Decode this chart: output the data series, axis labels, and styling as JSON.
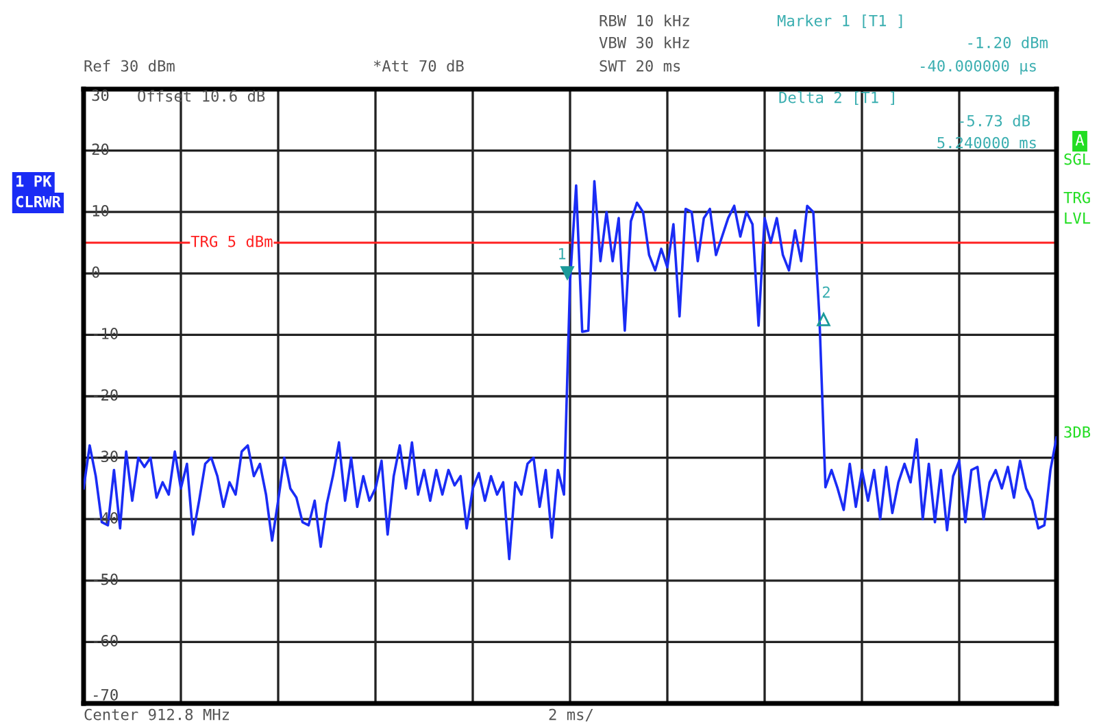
{
  "chart_data": {
    "type": "line",
    "ylim": [
      -70,
      30
    ],
    "yticks": [
      30,
      20,
      10,
      0,
      -10,
      -20,
      -30,
      -40,
      -50,
      -60,
      -70
    ],
    "categories": [
      null,
      null,
      null,
      null,
      null,
      null,
      null,
      null,
      null,
      null,
      null,
      null,
      null,
      null,
      null,
      null,
      null,
      null,
      null,
      null,
      null,
      null,
      null,
      null,
      null,
      null,
      null,
      null,
      null,
      null,
      null,
      null,
      null,
      null,
      null,
      null,
      null,
      null,
      null,
      null,
      null,
      null,
      null,
      null,
      null,
      null,
      null,
      null,
      null,
      null,
      null,
      null,
      null,
      null,
      null,
      null,
      null,
      null,
      null,
      null,
      null,
      null,
      null,
      null,
      null,
      null,
      null,
      null,
      null,
      null,
      null,
      null,
      null,
      null,
      null,
      null,
      null,
      null,
      null,
      null,
      null,
      null,
      null,
      null,
      null,
      null,
      null,
      null,
      null,
      null,
      null,
      null,
      null,
      null,
      null,
      null,
      null,
      null,
      null,
      null,
      null,
      null,
      null,
      null,
      null,
      null,
      null,
      null,
      null,
      null,
      null,
      null,
      null,
      null,
      null,
      null,
      null,
      null,
      null,
      null,
      null,
      null,
      null,
      null,
      null,
      null,
      null,
      null,
      null,
      null,
      null,
      null,
      null,
      null,
      null,
      null,
      null,
      null,
      null,
      null,
      null,
      null,
      null,
      null,
      null,
      null,
      null,
      null,
      null,
      null,
      null,
      null,
      null,
      null,
      null,
      null,
      null,
      null,
      null,
      null,
      null
    ],
    "tick_labels": "y",
    "grid": true,
    "legend": false,
    "marker": "none",
    "line_style": "solid",
    "ref_lines": [
      {
        "axis": "y",
        "value": 5,
        "label": "TRG 5 dBm",
        "color": "#ff2020"
      }
    ],
    "series": [
      {
        "color": "#1a2cf5",
        "values": [
          -35,
          -28,
          -33,
          -40.5,
          -41,
          -32,
          -41.5,
          -29,
          -37,
          -30,
          -31.5,
          -30,
          -36.5,
          -34,
          -36,
          -29,
          -35,
          -31,
          -42.5,
          -37,
          -31,
          -30,
          -33,
          -38,
          -34,
          -36,
          -29,
          -28,
          -33,
          -31,
          -36,
          -43.5,
          -37,
          -30,
          -35,
          -36.5,
          -40.5,
          -41,
          -37,
          -44.5,
          -37.5,
          -33,
          -27.5,
          -37,
          -30,
          -38,
          -33,
          -37,
          -35,
          -30.5,
          -42.5,
          -33,
          -28,
          -35,
          -27.5,
          -36,
          -32,
          -37,
          -32,
          -36,
          -32,
          -34.5,
          -33,
          -41.5,
          -35,
          -32.5,
          -37,
          -33,
          -36,
          -34,
          -46.5,
          -34,
          -36,
          -31,
          -30,
          -38,
          -32,
          -43,
          -32,
          -36,
          -1.2,
          14.3,
          -9.5,
          -9.3,
          15,
          2,
          10,
          2,
          9,
          -9.3,
          8.5,
          11.5,
          10,
          3,
          0.5,
          4,
          1,
          8,
          -7,
          10.5,
          10,
          2,
          9,
          10.5,
          3,
          6,
          9,
          11,
          6,
          10,
          8,
          -8.5,
          9,
          5,
          9,
          3,
          0.5,
          7,
          2,
          11,
          10,
          -6.9,
          -34.8,
          -32,
          -35,
          -38.5,
          -31,
          -38,
          -32,
          -37,
          -32,
          -40,
          -31.5,
          -39,
          -34,
          -31,
          -34,
          -27,
          -40,
          -31,
          -40.5,
          -32,
          -41.8,
          -33,
          -30.5,
          -40.5,
          -32,
          -31.5,
          -40,
          -34,
          -32,
          -35,
          -31.5,
          -36.5,
          -30.5,
          -35,
          -37,
          -41.5,
          -41,
          -32,
          -26.7
        ]
      }
    ],
    "annotations": [
      "Ref 30 dBm",
      "*Att 70 dB",
      "RBW 10 kHz",
      "VBW 30 kHz",
      "SWT 20 ms",
      "Marker 1 [T1 ]",
      "-1.20 dBm",
      "-40.000000 µs",
      "Offset 10.6 dB",
      "Delta 2 [T1 ]",
      "-5.73 dB",
      "5.240000 ms",
      "A",
      "SGL",
      "TRG",
      "LVL",
      "3DB",
      "1 PK",
      "CLRWR",
      "Center 912.8 MHz",
      "2 ms/",
      "1",
      "2"
    ]
  }
}
